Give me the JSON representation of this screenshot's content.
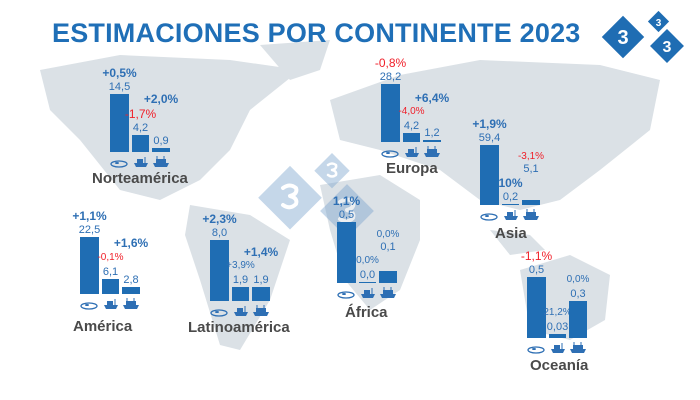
{
  "title": "ESTIMACIONES POR CONTINENTE 2023",
  "logo_text": "333",
  "colors": {
    "bar": "#1f6db3",
    "positive": "#2e6fb4",
    "negative": "#f0202a",
    "map": "#dbe1e6",
    "title": "#1f6fb7"
  },
  "chart_data": {
    "type": "bar",
    "title": "ESTIMACIONES POR CONTINENTE 2023",
    "categories": [
      "beef-icon",
      "cattle-ship-icon",
      "import-ship-icon"
    ],
    "groups": [
      {
        "name": "Norteamérica",
        "values": [
          14.5,
          4.2,
          0.9
        ],
        "value_labels": [
          "14,5",
          "4,2",
          "0,9"
        ],
        "changes": [
          "+0,5%",
          "-1,7%",
          "+2,0%"
        ]
      },
      {
        "name": "Europa",
        "values": [
          28.2,
          4.2,
          1.2
        ],
        "value_labels": [
          "28,2",
          "4,2",
          "1,2"
        ],
        "changes": [
          "-0,8%",
          "-4,0%",
          "+6,4%"
        ]
      },
      {
        "name": "Asia",
        "values": [
          59.4,
          0.2,
          5.1
        ],
        "value_labels": [
          "59,4",
          "0,2",
          "5,1"
        ],
        "changes": [
          "+1,9%",
          "10%",
          "-3,1%"
        ]
      },
      {
        "name": "América",
        "values": [
          22.5,
          6.1,
          2.8
        ],
        "value_labels": [
          "22,5",
          "6,1",
          "2,8"
        ],
        "changes": [
          "+1,1%",
          "-0,1%",
          "+1,6%"
        ]
      },
      {
        "name": "Latinoamérica",
        "values": [
          8.0,
          1.9,
          1.9
        ],
        "value_labels": [
          "8,0",
          "1,9",
          "1,9"
        ],
        "changes": [
          "+2,3%",
          "+3,9%",
          "+1,4%"
        ]
      },
      {
        "name": "África",
        "values": [
          0.5,
          0.0,
          0.1
        ],
        "value_labels": [
          "0,5",
          "0,0",
          "0,1"
        ],
        "changes": [
          "1,1%",
          "0,0%",
          "0,0%"
        ]
      },
      {
        "name": "Oceanía",
        "values": [
          0.5,
          0.03,
          0.3
        ],
        "value_labels": [
          "0,5",
          "0,03",
          "0,3"
        ],
        "changes": [
          "-1,1%",
          "21,2%",
          "0,0%"
        ]
      }
    ]
  }
}
